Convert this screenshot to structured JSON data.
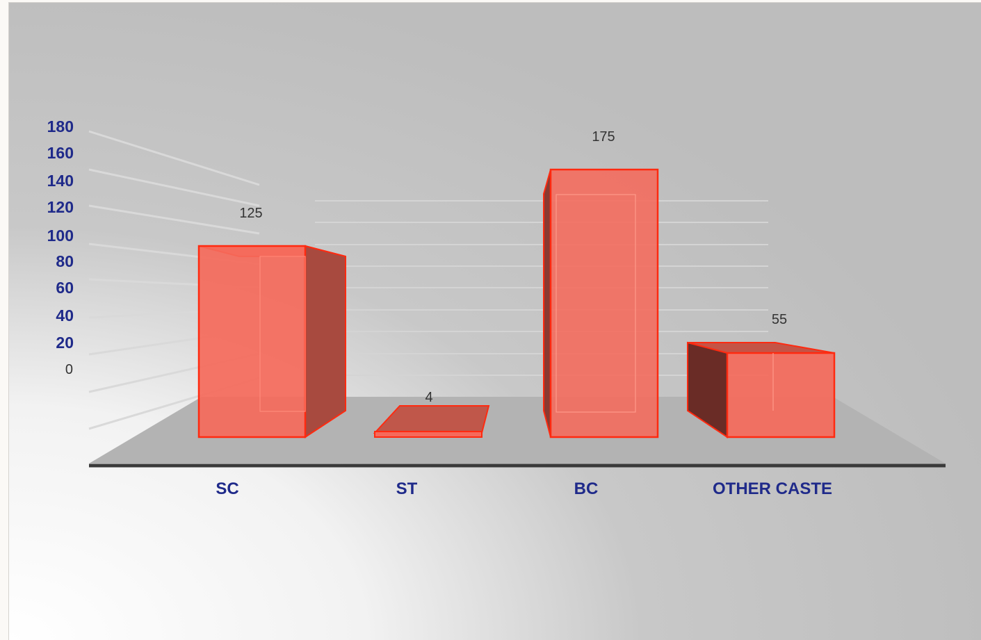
{
  "chart_data": {
    "type": "bar",
    "style": "3d",
    "categories": [
      "SC",
      "ST",
      "BC",
      "OTHER CASTE"
    ],
    "values": [
      125,
      4,
      175,
      55
    ],
    "ylim": [
      0,
      180
    ],
    "y_ticks": [
      "0",
      "20",
      "40",
      "60",
      "80",
      "100",
      "120",
      "140",
      "160",
      "180"
    ],
    "data_labels": [
      "125",
      "4",
      "175",
      "55"
    ],
    "title": "",
    "xlabel": "",
    "ylabel": "",
    "grid": true,
    "legend": "none",
    "colors": {
      "bar": "#f56a5b",
      "bar_edge": "#ff2a10",
      "tick_label": "#1f2a8a",
      "floor": "#b3b3b3",
      "background": "#c0c0c0"
    }
  }
}
